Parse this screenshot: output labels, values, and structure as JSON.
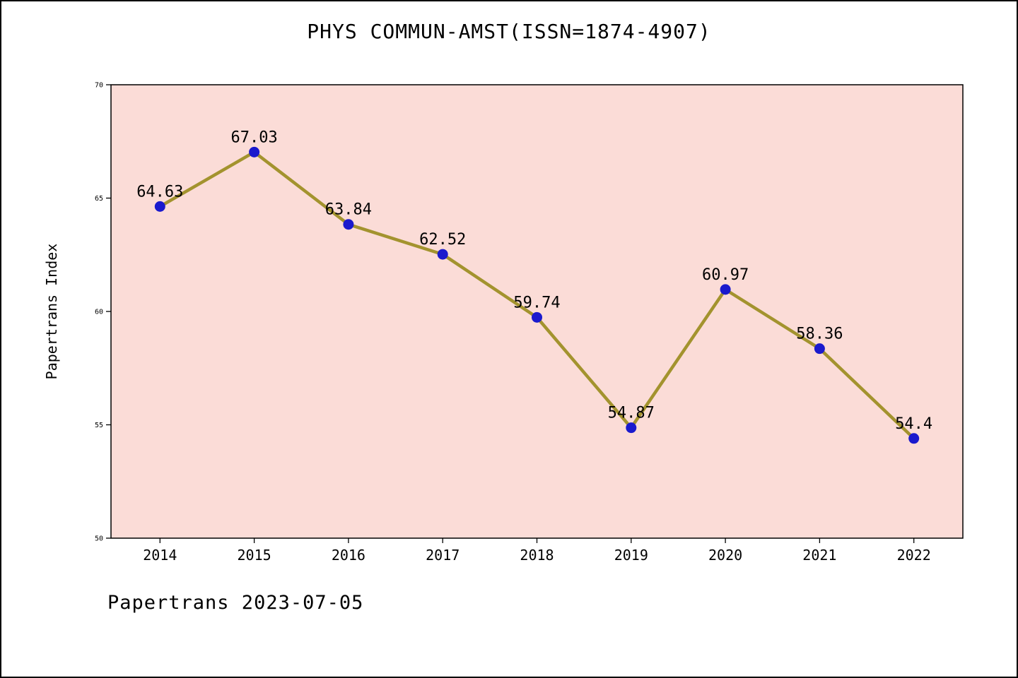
{
  "page": {
    "title": "PHYS COMMUN-AMST(ISSN=1874-4907)",
    "footer": "Papertrans 2023-07-05"
  },
  "chart_data": {
    "type": "line",
    "title": "PHYS COMMUN-AMST(ISSN=1874-4907)",
    "xlabel": "",
    "ylabel": "Papertrans Index",
    "categories": [
      "2014",
      "2015",
      "2016",
      "2017",
      "2018",
      "2019",
      "2020",
      "2021",
      "2022"
    ],
    "values": [
      64.63,
      67.03,
      63.84,
      62.52,
      59.74,
      54.87,
      60.97,
      58.36,
      54.4
    ],
    "point_labels": [
      "64.63",
      "67.03",
      "63.84",
      "62.52",
      "59.74",
      "54.87",
      "60.97",
      "58.36",
      "54.4"
    ],
    "ylim": [
      50,
      70
    ],
    "yticks": [
      50,
      55,
      60,
      65,
      70
    ],
    "grid": false,
    "legend": null,
    "annotation": "Papertrans 2023-07-05",
    "colors": {
      "line": "#a3932e",
      "marker": "#1a1acd",
      "plot_background": "#fbdcd7",
      "page_background": "#ffffff",
      "text": "#000000"
    }
  }
}
